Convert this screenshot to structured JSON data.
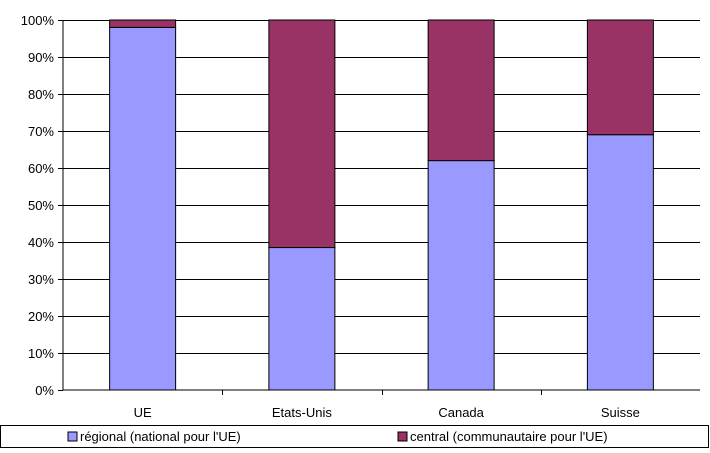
{
  "chart_data": {
    "type": "bar",
    "stacked": true,
    "percent": true,
    "categories": [
      "UE",
      "Etats-Unis",
      "Canada",
      "Suisse"
    ],
    "series": [
      {
        "name": "régional (national pour l'UE)",
        "color": "#9999ff",
        "values": [
          98,
          38.5,
          62,
          69
        ]
      },
      {
        "name": "central (communautaire pour l'UE)",
        "color": "#993366",
        "values": [
          2,
          61.5,
          38,
          31
        ]
      }
    ],
    "ylim": [
      0,
      100
    ],
    "yticks": [
      "0%",
      "10%",
      "20%",
      "30%",
      "40%",
      "50%",
      "60%",
      "70%",
      "80%",
      "90%",
      "100%"
    ],
    "grid": true,
    "legend": "bottom",
    "title": "",
    "xlabel": "",
    "ylabel": ""
  }
}
